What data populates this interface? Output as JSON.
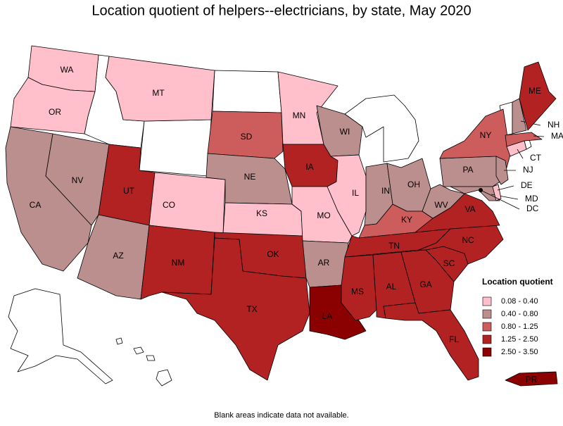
{
  "title": "Location quotient of helpers--electricians, by state, May 2020",
  "note": "Blank areas indicate data not available.",
  "legend": {
    "title": "Location quotient",
    "items": [
      {
        "label": "0.08 - 0.40",
        "color": "#ffc0cb"
      },
      {
        "label": "0.40 - 0.80",
        "color": "#bc8f8f"
      },
      {
        "label": "0.80 - 1.25",
        "color": "#cd5c5c"
      },
      {
        "label": "1.25 - 2.50",
        "color": "#b22222"
      },
      {
        "label": "2.50 - 3.50",
        "color": "#8b0000"
      }
    ]
  },
  "states": [
    {
      "abbr": "WA",
      "color": "#ffc0cb"
    },
    {
      "abbr": "OR",
      "color": "#ffc0cb"
    },
    {
      "abbr": "CA",
      "color": "#bc8f8f"
    },
    {
      "abbr": "NV",
      "color": "#bc8f8f"
    },
    {
      "abbr": "MT",
      "color": "#ffc0cb"
    },
    {
      "abbr": "UT",
      "color": "#b22222"
    },
    {
      "abbr": "CO",
      "color": "#ffc0cb"
    },
    {
      "abbr": "AZ",
      "color": "#bc8f8f"
    },
    {
      "abbr": "NM",
      "color": "#b22222"
    },
    {
      "abbr": "SD",
      "color": "#cd5c5c"
    },
    {
      "abbr": "NE",
      "color": "#bc8f8f"
    },
    {
      "abbr": "KS",
      "color": "#ffc0cb"
    },
    {
      "abbr": "OK",
      "color": "#b22222"
    },
    {
      "abbr": "TX",
      "color": "#b22222"
    },
    {
      "abbr": "MN",
      "color": "#ffc0cb"
    },
    {
      "abbr": "IA",
      "color": "#b22222"
    },
    {
      "abbr": "MO",
      "color": "#ffc0cb"
    },
    {
      "abbr": "AR",
      "color": "#bc8f8f"
    },
    {
      "abbr": "LA",
      "color": "#8b0000"
    },
    {
      "abbr": "WI",
      "color": "#bc8f8f"
    },
    {
      "abbr": "IL",
      "color": "#ffc0cb"
    },
    {
      "abbr": "IN",
      "color": "#bc8f8f"
    },
    {
      "abbr": "OH",
      "color": "#bc8f8f"
    },
    {
      "abbr": "KY",
      "color": "#cd5c5c"
    },
    {
      "abbr": "TN",
      "color": "#b22222"
    },
    {
      "abbr": "MS",
      "color": "#b22222"
    },
    {
      "abbr": "AL",
      "color": "#b22222"
    },
    {
      "abbr": "GA",
      "color": "#b22222"
    },
    {
      "abbr": "FL",
      "color": "#b22222"
    },
    {
      "abbr": "SC",
      "color": "#b22222"
    },
    {
      "abbr": "NC",
      "color": "#b22222"
    },
    {
      "abbr": "VA",
      "color": "#b22222"
    },
    {
      "abbr": "WV",
      "color": "#bc8f8f"
    },
    {
      "abbr": "PA",
      "color": "#bc8f8f"
    },
    {
      "abbr": "NY",
      "color": "#cd5c5c"
    },
    {
      "abbr": "MD",
      "color": "#bc8f8f"
    },
    {
      "abbr": "DE",
      "color": "#ffc0cb"
    },
    {
      "abbr": "NJ",
      "color": "#bc8f8f"
    },
    {
      "abbr": "CT",
      "color": "#ffc0cb"
    },
    {
      "abbr": "MA",
      "color": "#cd5c5c"
    },
    {
      "abbr": "NH",
      "color": "#bc8f8f"
    },
    {
      "abbr": "ME",
      "color": "#b22222"
    },
    {
      "abbr": "PR",
      "color": "#8b0000"
    },
    {
      "abbr": "DC",
      "color": "#000000"
    }
  ]
}
